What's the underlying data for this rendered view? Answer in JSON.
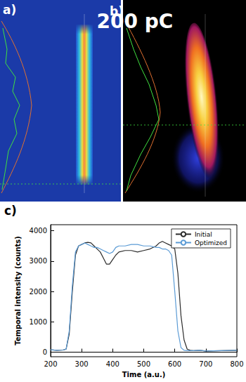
{
  "figure": {
    "annotation": "200 pC",
    "panel_labels": [
      "a)",
      "b)",
      "c)"
    ]
  },
  "chart_data": {
    "type": "line",
    "x_label": "Time (a.u.)",
    "y_label": "Temporal intensity (counts)",
    "x": [
      200,
      220,
      240,
      250,
      260,
      270,
      280,
      290,
      300,
      310,
      320,
      330,
      340,
      350,
      360,
      370,
      380,
      390,
      400,
      410,
      420,
      440,
      460,
      480,
      500,
      520,
      540,
      550,
      560,
      570,
      580,
      590,
      600,
      610,
      620,
      630,
      640,
      650,
      660,
      680,
      700,
      750,
      800
    ],
    "series": [
      {
        "name": "Initial",
        "color": "#2b2b2b",
        "values": [
          80,
          60,
          70,
          100,
          600,
          2000,
          3200,
          3500,
          3550,
          3600,
          3620,
          3600,
          3500,
          3400,
          3300,
          3100,
          2900,
          2900,
          3050,
          3200,
          3300,
          3350,
          3350,
          3300,
          3350,
          3400,
          3500,
          3600,
          3650,
          3600,
          3550,
          3500,
          3400,
          2600,
          1200,
          400,
          100,
          60,
          50,
          60,
          40,
          50,
          60
        ]
      },
      {
        "name": "Optimized",
        "color": "#5b9bd5",
        "values": [
          80,
          60,
          70,
          100,
          700,
          2200,
          3300,
          3500,
          3550,
          3600,
          3550,
          3500,
          3450,
          3450,
          3400,
          3350,
          3300,
          3250,
          3300,
          3450,
          3500,
          3500,
          3550,
          3550,
          3500,
          3500,
          3450,
          3450,
          3400,
          3400,
          3350,
          3200,
          2000,
          700,
          150,
          60,
          50,
          50,
          50,
          60,
          40,
          50,
          60
        ]
      }
    ],
    "xlim": [
      200,
      800
    ],
    "xticks": [
      200,
      300,
      400,
      500,
      600,
      700,
      800
    ],
    "ylim": [
      -150,
      4200
    ],
    "yticks": [
      0,
      1000,
      2000,
      3000,
      4000
    ],
    "grid": false,
    "legend": "upper right"
  }
}
